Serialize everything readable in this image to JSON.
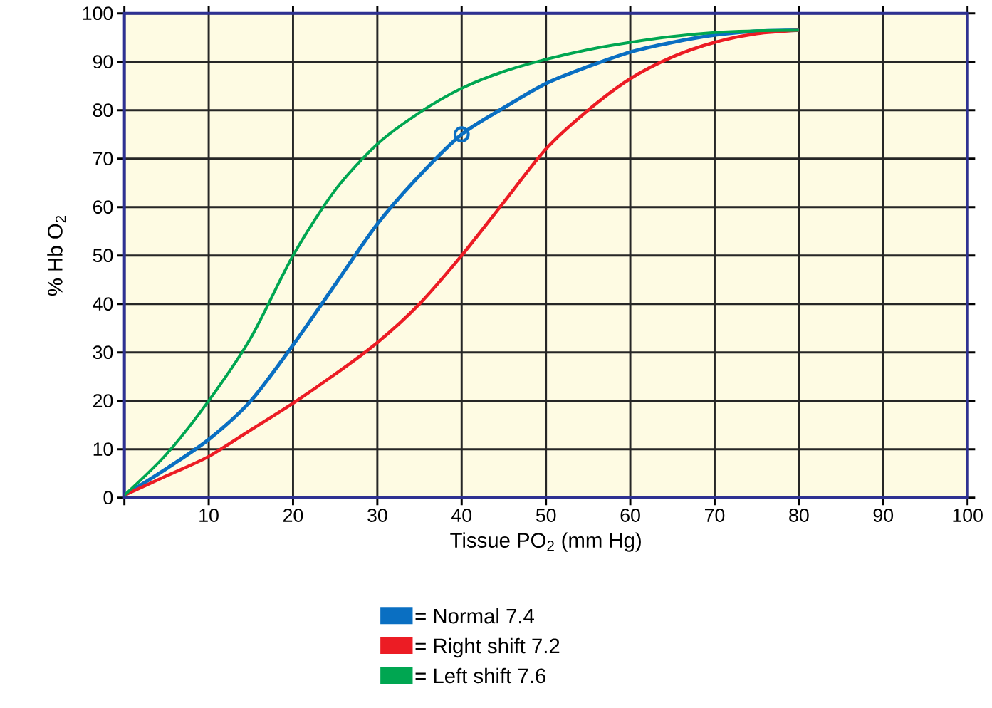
{
  "chart_data": {
    "type": "line",
    "xlabel": "Tissue PO$_{2}$ (mm Hg)",
    "ylabel": "% Hb O$_{2}$",
    "xlim": [
      0,
      100
    ],
    "ylim": [
      0,
      100
    ],
    "xticks": [
      {
        "value": 0,
        "label": null
      },
      10,
      20,
      30,
      40,
      50,
      60,
      70,
      80,
      90,
      100
    ],
    "yticks": [
      0,
      10,
      20,
      30,
      40,
      50,
      60,
      70,
      80,
      90,
      100
    ],
    "grid": true,
    "legend": "bottom",
    "series": [
      {
        "name": "= Normal 7.4",
        "color": "#0a6fc2",
        "x": [
          0,
          5,
          10,
          15,
          20,
          25,
          30,
          35,
          40,
          45,
          50,
          55,
          60,
          65,
          70,
          75,
          80
        ],
        "values": [
          0.5,
          6,
          12,
          20,
          31.5,
          44,
          56.5,
          66.5,
          75,
          80.5,
          85.5,
          89,
          92,
          94,
          95.5,
          96.3,
          96.5
        ]
      },
      {
        "name": "= Right shift 7.2",
        "color": "#ec1c24",
        "x": [
          0,
          5,
          10,
          15,
          20,
          25,
          30,
          35,
          40,
          45,
          50,
          55,
          60,
          65,
          70,
          75,
          80
        ],
        "values": [
          0.5,
          4.5,
          8.5,
          14,
          19.5,
          25.5,
          32,
          40,
          50,
          61,
          72,
          80,
          86.5,
          91,
          94,
          95.8,
          96.5
        ]
      },
      {
        "name": "= Left shift 7.6",
        "color": "#00a651",
        "x": [
          0,
          5,
          10,
          15,
          20,
          25,
          30,
          35,
          40,
          45,
          50,
          55,
          60,
          65,
          70,
          75,
          80
        ],
        "values": [
          0.5,
          9,
          20,
          33,
          50,
          63.5,
          73,
          79.5,
          84.5,
          88,
          90.5,
          92.5,
          94,
          95.2,
          96,
          96.4,
          96.5
        ]
      },
      {
        "type": "scatter",
        "color": "#0a6fc2",
        "marker": "circle",
        "x": [
          40
        ],
        "values": [
          75
        ]
      }
    ]
  }
}
